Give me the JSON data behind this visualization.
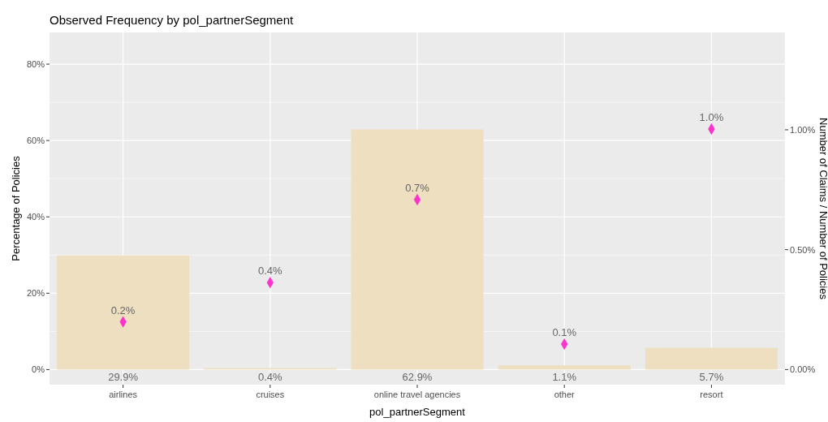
{
  "chart_data": {
    "type": "bar",
    "title": "Observed Frequency by pol_partnerSegment",
    "xlabel": "pol_partnerSegment",
    "ylabel": "Percentage of Policies",
    "y2label": "Number of Claims / Number of Policies",
    "categories": [
      "airlines",
      "cruises",
      "online travel agencies",
      "other",
      "resort"
    ],
    "series": [
      {
        "color": "#eddfbf",
        "values": [
          29.9,
          0.4,
          62.9,
          1.1,
          5.7
        ],
        "value_labels": [
          "29.9%",
          "0.4%",
          "62.9%",
          "1.1%",
          "5.7%"
        ]
      },
      {
        "type": "scatter",
        "axis": "y2",
        "color": "#ff33cc",
        "marker": "diamond",
        "values": [
          0.199,
          0.363,
          0.709,
          0.106,
          1.003
        ],
        "value_labels": [
          "0.2%",
          "0.4%",
          "0.7%",
          "0.1%",
          "1.0%"
        ]
      }
    ],
    "ylim": [
      -3.95,
      88.3
    ],
    "yticks": [
      {
        "value": 0,
        "label": "0%"
      },
      {
        "value": 20,
        "label": "20%"
      },
      {
        "value": 40,
        "label": "40%"
      },
      {
        "value": 60,
        "label": "60%"
      },
      {
        "value": 80,
        "label": "80%"
      }
    ],
    "y2lim": [
      -0.063,
      1.406
    ],
    "y2ticks": [
      {
        "value": 0,
        "label": "0.00%"
      },
      {
        "value": 0.5,
        "label": "0.50%"
      },
      {
        "value": 1,
        "label": "1.00%"
      }
    ],
    "grid": true
  }
}
